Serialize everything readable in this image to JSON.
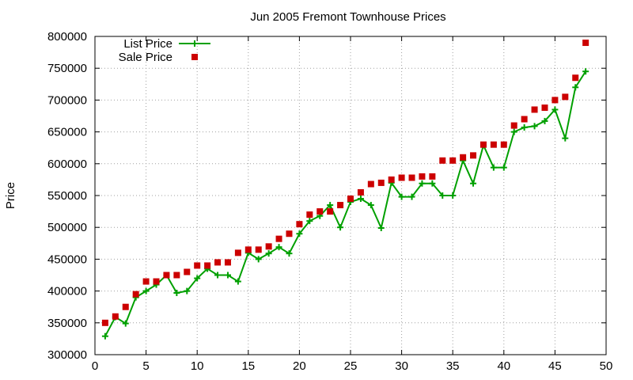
{
  "chart_data": {
    "type": "line",
    "title": "Jun 2005 Fremont Townhouse Prices",
    "xlabel": "",
    "ylabel": "Price",
    "xlim": [
      0,
      50
    ],
    "ylim": [
      300000,
      800000
    ],
    "x_ticks": [
      0,
      5,
      10,
      15,
      20,
      25,
      30,
      35,
      40,
      45,
      50
    ],
    "y_ticks": [
      300000,
      350000,
      400000,
      450000,
      500000,
      550000,
      600000,
      650000,
      700000,
      750000,
      800000
    ],
    "grid": true,
    "legend_position": "top-left",
    "x": [
      1,
      2,
      3,
      4,
      5,
      6,
      7,
      8,
      9,
      10,
      11,
      12,
      13,
      14,
      15,
      16,
      17,
      18,
      19,
      20,
      21,
      22,
      23,
      24,
      25,
      26,
      27,
      28,
      29,
      30,
      31,
      32,
      33,
      34,
      35,
      36,
      37,
      38,
      39,
      40,
      41,
      42,
      43,
      44,
      45,
      46,
      47,
      48
    ],
    "series": [
      {
        "name": "List Price",
        "kind": "line-points",
        "color": "#00a000",
        "marker": "plus",
        "values": [
          329000,
          359000,
          349000,
          390000,
          400000,
          410000,
          425000,
          397000,
          400000,
          420000,
          435000,
          425000,
          425000,
          415000,
          460000,
          450000,
          459000,
          469000,
          459000,
          490000,
          510000,
          518000,
          535000,
          500000,
          540000,
          545000,
          535000,
          499000,
          570000,
          548000,
          548000,
          569000,
          569000,
          550000,
          550000,
          605000,
          569000,
          629000,
          594000,
          594000,
          650000,
          657000,
          659000,
          667000,
          685000,
          640000,
          720000,
          745000
        ]
      },
      {
        "name": "Sale Price",
        "kind": "points",
        "color": "#cc0000",
        "marker": "square",
        "values": [
          350000,
          360000,
          375000,
          395000,
          415000,
          415000,
          425000,
          425000,
          430000,
          440000,
          440000,
          445000,
          445000,
          460000,
          465000,
          465000,
          470000,
          482000,
          490000,
          505000,
          520000,
          525000,
          525000,
          535000,
          545000,
          555000,
          568000,
          570000,
          575000,
          578000,
          578000,
          580000,
          580000,
          605000,
          605000,
          610000,
          613000,
          630000,
          630000,
          630000,
          660000,
          670000,
          685000,
          688000,
          700000,
          705000,
          735000,
          790000
        ]
      }
    ]
  }
}
